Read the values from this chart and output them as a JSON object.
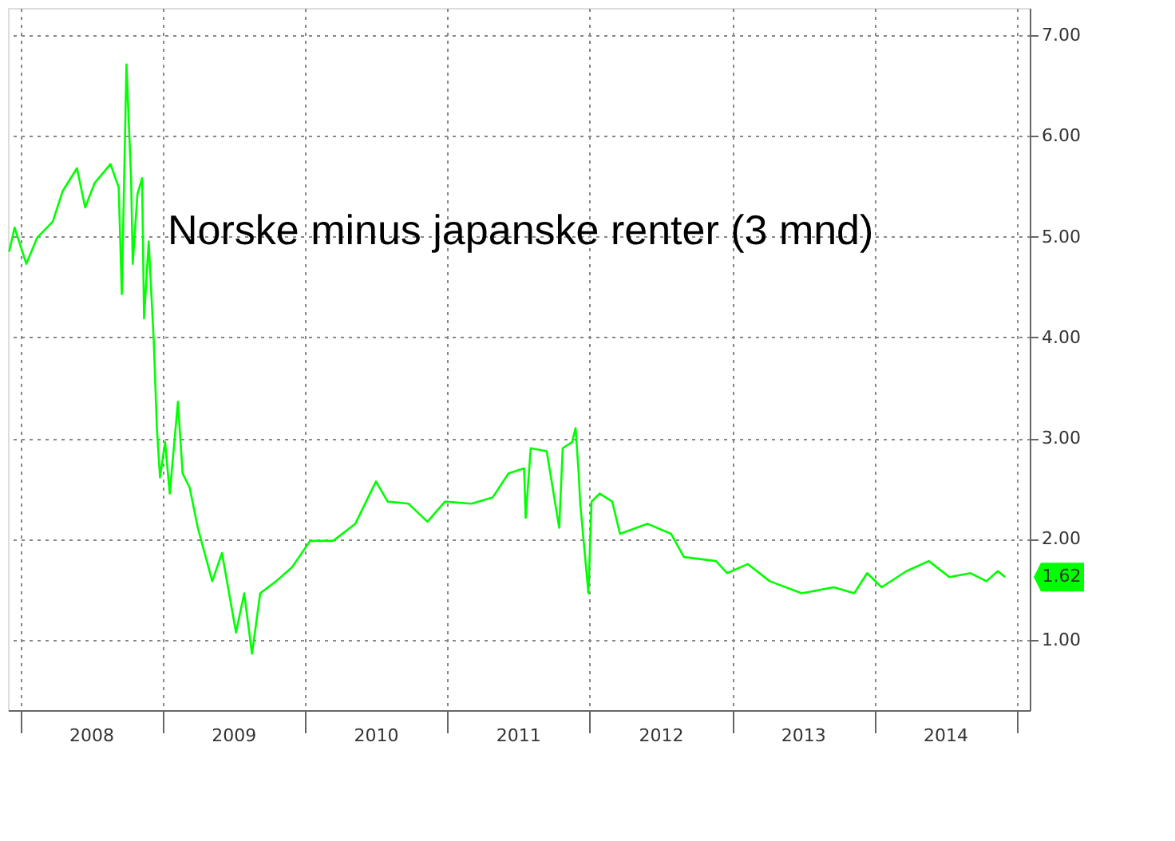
{
  "chart_data": {
    "type": "line",
    "annotations": [
      "Norske minus japanske renter (3 mnd)",
      {
        "text": "1.62",
        "x": "2014-12-02",
        "y": 1.62
      }
    ],
    "x": [
      "2007-12-04",
      "2007-12-18",
      "2008-01-17",
      "2008-02-14",
      "2008-03-25",
      "2008-04-19",
      "2008-05-26",
      "2008-06-16",
      "2008-07-10",
      "2008-08-20",
      "2008-09-10",
      "2008-09-18",
      "2008-09-30",
      "2008-10-12",
      "2008-10-16",
      "2008-10-28",
      "2008-11-09",
      "2008-11-14",
      "2008-11-26",
      "2008-12-09",
      "2008-12-17",
      "2008-12-25",
      "2009-01-07",
      "2009-01-19",
      "2009-02-09",
      "2009-02-21",
      "2009-03-11",
      "2009-04-01",
      "2009-05-08",
      "2009-06-02",
      "2009-07-08",
      "2009-07-29",
      "2009-08-18",
      "2009-09-08",
      "2009-10-19",
      "2009-11-29",
      "2010-01-14",
      "2010-03-14",
      "2010-05-10",
      "2010-07-02",
      "2010-08-01",
      "2010-09-23",
      "2010-11-11",
      "2010-12-26",
      "2011-03-04",
      "2011-04-27",
      "2011-06-07",
      "2011-07-17",
      "2011-07-21",
      "2011-08-03",
      "2011-09-13",
      "2011-10-15",
      "2011-10-24",
      "2011-11-17",
      "2011-11-26",
      "2011-12-04",
      "2011-12-08",
      "2011-12-29",
      "2012-01-06",
      "2012-01-27",
      "2012-02-28",
      "2012-03-19",
      "2012-05-28",
      "2012-07-28",
      "2012-08-30",
      "2012-11-20",
      "2012-12-19",
      "2013-02-10",
      "2013-04-07",
      "2013-06-28",
      "2013-09-18",
      "2013-11-10",
      "2013-12-13",
      "2014-01-19",
      "2014-03-24",
      "2014-05-20",
      "2014-07-12",
      "2014-09-04",
      "2014-10-15",
      "2014-11-13",
      "2014-12-02"
    ],
    "series": [
      {
        "color": "#00ff00",
        "values": [
          4.85,
          5.09,
          4.73,
          4.99,
          5.15,
          5.45,
          5.68,
          5.29,
          5.53,
          5.72,
          5.49,
          4.43,
          6.71,
          5.55,
          4.73,
          5.42,
          5.58,
          4.19,
          4.95,
          3.96,
          3.1,
          2.61,
          2.96,
          2.45,
          3.36,
          2.65,
          2.51,
          2.11,
          1.58,
          1.86,
          1.07,
          1.46,
          0.86,
          1.46,
          1.58,
          1.72,
          1.98,
          1.98,
          2.15,
          2.57,
          2.37,
          2.35,
          2.17,
          2.37,
          2.35,
          2.41,
          2.65,
          2.7,
          2.21,
          2.9,
          2.87,
          2.11,
          2.9,
          2.96,
          3.1,
          2.65,
          2.35,
          1.46,
          2.37,
          2.45,
          2.37,
          2.05,
          2.15,
          2.05,
          1.82,
          1.78,
          1.66,
          1.75,
          1.58,
          1.46,
          1.52,
          1.46,
          1.66,
          1.52,
          1.68,
          1.78,
          1.62,
          1.66,
          1.58,
          1.68,
          1.62
        ]
      }
    ],
    "xlim": [
      "2007-12-01",
      "2015-02-03"
    ],
    "xticks": [
      {
        "value": "2008-01-01",
        "label": null
      },
      {
        "value": "2008-07-01",
        "label": "2008"
      },
      {
        "value": "2009-01-01",
        "label": null
      },
      {
        "value": "2009-07-01",
        "label": "2009"
      },
      {
        "value": "2010-01-01",
        "label": null
      },
      {
        "value": "2010-07-01",
        "label": "2010"
      },
      {
        "value": "2011-01-01",
        "label": null
      },
      {
        "value": "2011-07-01",
        "label": "2011"
      },
      {
        "value": "2012-01-01",
        "label": null
      },
      {
        "value": "2012-07-01",
        "label": "2012"
      },
      {
        "value": "2013-01-01",
        "label": null
      },
      {
        "value": "2013-07-01",
        "label": "2013"
      },
      {
        "value": "2014-01-01",
        "label": null
      },
      {
        "value": "2014-07-01",
        "label": "2014"
      },
      {
        "value": "2015-01-01",
        "label": null
      }
    ],
    "ylim": [
      0.3,
      7.27
    ],
    "yticks": [
      {
        "value": 1,
        "label": "1.00"
      },
      {
        "value": 2,
        "label": "2.00"
      },
      {
        "value": 3,
        "label": "3.00"
      },
      {
        "value": 4,
        "label": "4.00"
      },
      {
        "value": 5,
        "label": "5.00"
      },
      {
        "value": 6,
        "label": "6.00"
      },
      {
        "value": 7,
        "label": "7.00"
      }
    ],
    "grid": true,
    "line_style": "solid",
    "marker": "none"
  }
}
